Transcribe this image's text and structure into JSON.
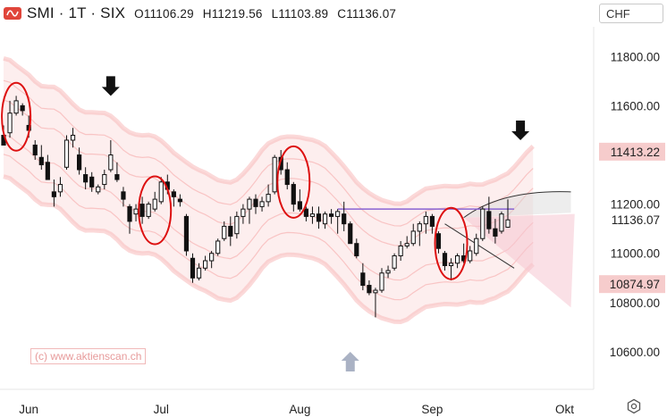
{
  "header": {
    "symbol": "SMI · 1T · SIX",
    "open": "O11106.29",
    "high": "H11219.56",
    "low": "L11103.89",
    "close": "C11136.07"
  },
  "currency_select": {
    "value": "CHF"
  },
  "watermark": "(c) www.aktienscan.ch",
  "icons": {
    "logo": "smi-logo-icon",
    "settings": "settings-hexagon-icon",
    "down_arrows": "black-down-arrow-icon",
    "up_arrow": "gray-up-arrow-icon"
  },
  "colors": {
    "band_line": "#f7b9b9",
    "band_fill": "#fdeeee",
    "candle": "#111111",
    "price_badge": "#f6cccc",
    "circle": "#dd1111",
    "trend_line": "#8a63d2",
    "upper_cone": "#d8d8d8",
    "lower_cone": "#f6c7d2"
  },
  "chart_data": {
    "type": "candlestick",
    "yticks": [
      {
        "value": 10600,
        "label": "10600.00"
      },
      {
        "value": 10800,
        "label": "10800.00"
      },
      {
        "value": 11000,
        "label": "11000.00"
      },
      {
        "value": 11200,
        "label": "11200.00"
      },
      {
        "value": 11600,
        "label": "11600.00"
      },
      {
        "value": 11800,
        "label": "11800.00"
      }
    ],
    "price_badges": [
      {
        "value": 11413.22,
        "label": "11413.22",
        "highlight": true
      },
      {
        "value": 11136.07,
        "label": "11136.07",
        "highlight": false
      },
      {
        "value": 10874.97,
        "label": "10874.97",
        "highlight": true
      }
    ],
    "xticks": [
      {
        "label": "Jun",
        "index": 4
      },
      {
        "label": "Jul",
        "index": 25
      },
      {
        "label": "Aug",
        "index": 47
      },
      {
        "label": "Sep",
        "index": 68
      },
      {
        "label": "Okt",
        "index": 89
      }
    ],
    "ylim": [
      10520,
      11870
    ],
    "candles": [
      [
        11480,
        11520,
        11440,
        11440
      ],
      [
        11490,
        11620,
        11470,
        11570
      ],
      [
        11570,
        11640,
        11560,
        11620
      ],
      [
        11600,
        11610,
        11560,
        11580
      ],
      [
        11520,
        11560,
        11470,
        11500
      ],
      [
        11440,
        11460,
        11380,
        11400
      ],
      [
        11390,
        11440,
        11340,
        11360
      ],
      [
        11370,
        11400,
        11300,
        11300
      ],
      [
        11250,
        11300,
        11190,
        11230
      ],
      [
        11250,
        11310,
        11230,
        11280
      ],
      [
        11350,
        11480,
        11340,
        11460
      ],
      [
        11460,
        11510,
        11430,
        11480
      ],
      [
        11400,
        11430,
        11320,
        11340
      ],
      [
        11320,
        11350,
        11260,
        11290
      ],
      [
        11310,
        11330,
        11250,
        11270
      ],
      [
        11250,
        11280,
        11240,
        11270
      ],
      [
        11280,
        11340,
        11260,
        11320
      ],
      [
        11340,
        11460,
        11330,
        11400
      ],
      [
        11320,
        11370,
        11290,
        11300
      ],
      [
        11250,
        11270,
        11190,
        11220
      ],
      [
        11190,
        11200,
        11080,
        11130
      ],
      [
        11160,
        11200,
        11130,
        11180
      ],
      [
        11200,
        11230,
        11120,
        11150
      ],
      [
        11150,
        11210,
        11140,
        11200
      ],
      [
        11180,
        11250,
        11170,
        11220
      ],
      [
        11210,
        11310,
        11200,
        11290
      ],
      [
        11290,
        11320,
        11240,
        11260
      ],
      [
        11250,
        11260,
        11190,
        11230
      ],
      [
        11220,
        11240,
        11190,
        11210
      ],
      [
        11150,
        11160,
        10990,
        11010
      ],
      [
        10980,
        11000,
        10880,
        10900
      ],
      [
        10900,
        10960,
        10890,
        10940
      ],
      [
        10940,
        10990,
        10930,
        10970
      ],
      [
        10970,
        11010,
        10940,
        11000
      ],
      [
        11000,
        11060,
        10990,
        11050
      ],
      [
        11060,
        11130,
        11050,
        11110
      ],
      [
        11110,
        11150,
        11030,
        11070
      ],
      [
        11080,
        11170,
        11060,
        11150
      ],
      [
        11150,
        11200,
        11120,
        11180
      ],
      [
        11180,
        11230,
        11120,
        11220
      ],
      [
        11220,
        11240,
        11160,
        11190
      ],
      [
        11190,
        11230,
        11170,
        11210
      ],
      [
        11210,
        11280,
        11190,
        11240
      ],
      [
        11250,
        11400,
        11240,
        11390
      ],
      [
        11390,
        11420,
        11320,
        11340
      ],
      [
        11340,
        11370,
        11260,
        11280
      ],
      [
        11280,
        11290,
        11170,
        11200
      ],
      [
        11210,
        11260,
        11170,
        11180
      ],
      [
        11180,
        11190,
        11130,
        11150
      ],
      [
        11150,
        11190,
        11120,
        11160
      ],
      [
        11160,
        11190,
        11100,
        11130
      ],
      [
        11120,
        11170,
        11100,
        11160
      ],
      [
        11160,
        11180,
        11120,
        11150
      ],
      [
        11150,
        11180,
        11080,
        11170
      ],
      [
        11160,
        11210,
        11090,
        11120
      ],
      [
        11120,
        11130,
        11050,
        11040
      ],
      [
        11040,
        11060,
        10980,
        10990
      ],
      [
        10920,
        10960,
        10850,
        10870
      ],
      [
        10870,
        10890,
        10830,
        10840
      ],
      [
        10840,
        10860,
        10740,
        10850
      ],
      [
        10850,
        10940,
        10840,
        10920
      ],
      [
        10920,
        10950,
        10900,
        10930
      ],
      [
        10940,
        11000,
        10930,
        10990
      ],
      [
        10990,
        11050,
        10970,
        11030
      ],
      [
        11030,
        11070,
        11020,
        11040
      ],
      [
        11040,
        11120,
        11030,
        11090
      ],
      [
        11090,
        11130,
        11030,
        11120
      ],
      [
        11120,
        11170,
        11080,
        11150
      ],
      [
        11150,
        11160,
        11080,
        11110
      ],
      [
        11080,
        11090,
        11000,
        11020
      ],
      [
        11000,
        11010,
        10930,
        10950
      ],
      [
        10950,
        10980,
        10890,
        10960
      ],
      [
        10960,
        11000,
        10940,
        10990
      ],
      [
        10990,
        11040,
        10960,
        10970
      ],
      [
        10970,
        11030,
        10960,
        11010
      ],
      [
        11000,
        11080,
        10990,
        11060
      ],
      [
        11060,
        11190,
        11050,
        11180
      ],
      [
        11170,
        11230,
        11080,
        11100
      ],
      [
        11100,
        11140,
        11040,
        11070
      ],
      [
        11090,
        11170,
        11080,
        11160
      ],
      [
        11106.29,
        11219.56,
        11103.89,
        11136.07
      ]
    ],
    "circles": [
      {
        "index": 2,
        "value": 11555,
        "rx": 16,
        "ry": 38
      },
      {
        "index": 24,
        "value": 11175,
        "rx": 18,
        "ry": 38
      },
      {
        "index": 46,
        "value": 11290,
        "rx": 18,
        "ry": 40
      },
      {
        "index": 71,
        "value": 11040,
        "rx": 18,
        "ry": 40
      }
    ],
    "arrows": [
      {
        "direction": "down",
        "index": 17,
        "value": 11640
      },
      {
        "direction": "down",
        "index": 82,
        "value": 11460
      },
      {
        "direction": "up",
        "index": 55,
        "value": 10600
      }
    ],
    "resistance_line": {
      "from": 53,
      "to": 81,
      "value": 11180
    },
    "upper_cone": {
      "from_index": 73,
      "from_value": 11145,
      "to_index": 90,
      "to_value": 11250
    },
    "lower_cone": {
      "from_index": 73,
      "from_value": 11145,
      "to_index": 90,
      "to_value": 10780
    }
  }
}
